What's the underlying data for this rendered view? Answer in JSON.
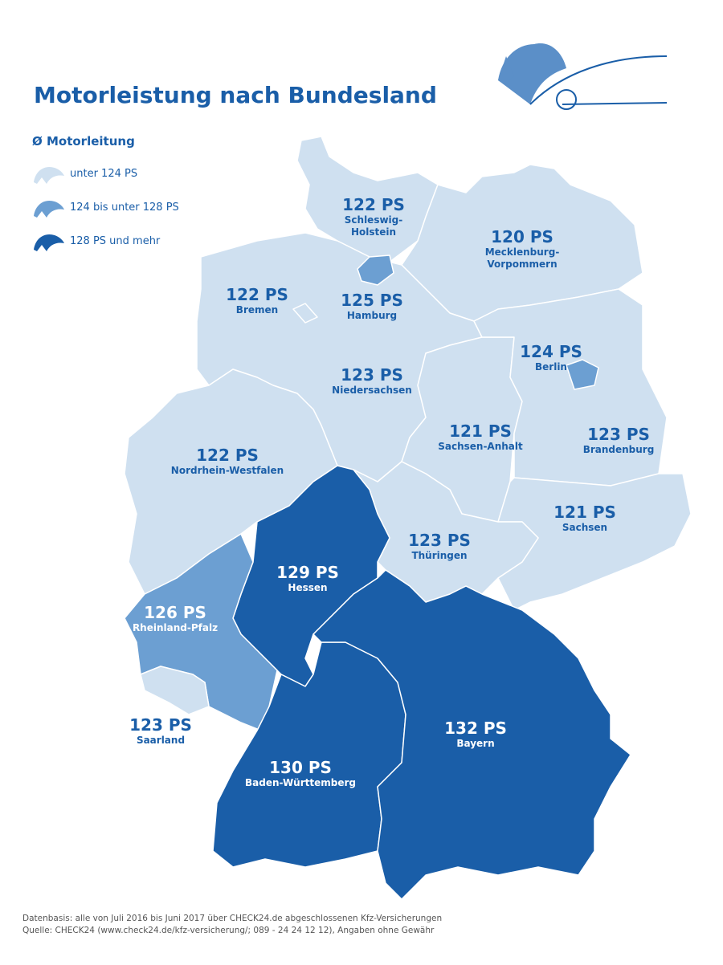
{
  "header": {
    "title": "Motorleistung nach Bundesland"
  },
  "legend": {
    "title": "Ø Motorleitung",
    "items": [
      "unter 124 PS",
      "124 bis unter 128 PS",
      "128 PS und mehr"
    ]
  },
  "states": [
    {
      "value": "122 PS",
      "name": [
        "Schleswig-",
        "Holstein"
      ]
    },
    {
      "value": "120 PS",
      "name": [
        "Mecklenburg-",
        "Vorpommern"
      ]
    },
    {
      "value": "122 PS",
      "name": [
        "Bremen"
      ]
    },
    {
      "value": "125 PS",
      "name": [
        "Hamburg"
      ]
    },
    {
      "value": "124 PS",
      "name": [
        "Berlin"
      ]
    },
    {
      "value": "123 PS",
      "name": [
        "Niedersachsen"
      ]
    },
    {
      "value": "121 PS",
      "name": [
        "Sachsen-Anhalt"
      ]
    },
    {
      "value": "123 PS",
      "name": [
        "Brandenburg"
      ]
    },
    {
      "value": "122 PS",
      "name": [
        "Nordrhein-Westfalen"
      ]
    },
    {
      "value": "121 PS",
      "name": [
        "Sachsen"
      ]
    },
    {
      "value": "123 PS",
      "name": [
        "Thüringen"
      ]
    },
    {
      "value": "129 PS",
      "name": [
        "Hessen"
      ]
    },
    {
      "value": "126 PS",
      "name": [
        "Rheinland-Pfalz"
      ]
    },
    {
      "value": "123 PS",
      "name": [
        "Saarland"
      ]
    },
    {
      "value": "132 PS",
      "name": [
        "Bayern"
      ]
    },
    {
      "value": "130 PS",
      "name": [
        "Baden-Württemberg"
      ]
    }
  ],
  "footer": [
    "Datenbasis: alle von Juli 2016 bis Juni 2017 über CHECK24.de abgeschlossenen Kfz-Versicherungen",
    "Quelle: CHECK24 (www.check24.de/kfz-versicherung/; 089 - 24 24 12 12), Angaben ohne Gewähr"
  ]
}
